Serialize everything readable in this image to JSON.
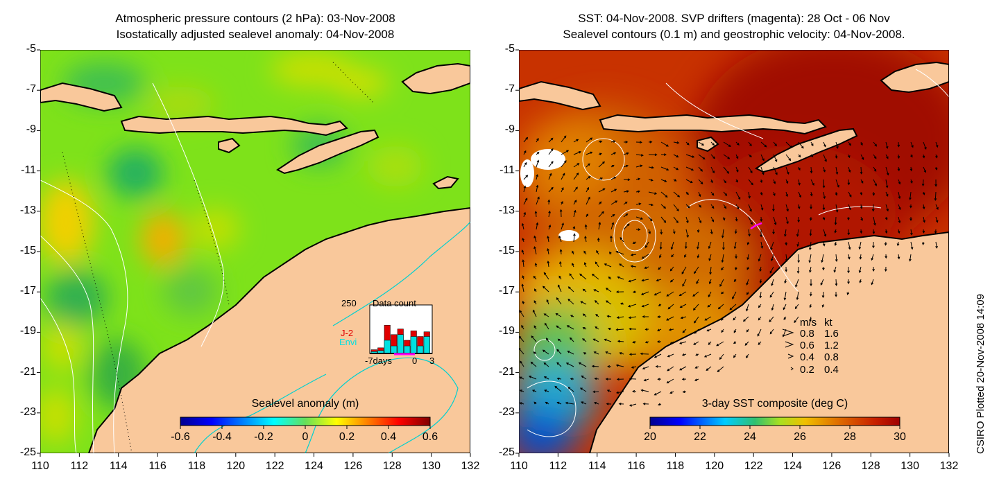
{
  "left_panel": {
    "title_line1": "Atmospheric pressure contours (2 hPa): 03-Nov-2008",
    "title_line2": "Isostatically adjusted sealevel anomaly: 04-Nov-2008",
    "colorbar": {
      "label": "Sealevel anomaly (m)",
      "ticks": [
        "-0.6",
        "-0.4",
        "-0.2",
        "0",
        "0.2",
        "0.4",
        "0.6"
      ],
      "range": [
        -0.6,
        0.6
      ],
      "colormap": "jet"
    },
    "inset": {
      "title": "Data count",
      "ymax_label": "250",
      "series": [
        {
          "name": "J-2",
          "color": "#e00000"
        },
        {
          "name": "Envi",
          "color": "#00e0e0"
        }
      ],
      "x_labels": [
        "-7days",
        "0",
        "3"
      ],
      "bars": [
        {
          "day": -6,
          "j2": 20,
          "envi": 10
        },
        {
          "day": -5,
          "j2": 30,
          "envi": 15
        },
        {
          "day": -4,
          "j2": 150,
          "envi": 70
        },
        {
          "day": -3,
          "j2": 100,
          "envi": 40
        },
        {
          "day": -2,
          "j2": 130,
          "envi": 100
        },
        {
          "day": -1,
          "j2": 70,
          "envi": 40
        },
        {
          "day": 0,
          "j2": 120,
          "envi": 90
        },
        {
          "day": 1,
          "j2": 90,
          "envi": 40
        },
        {
          "day": 2,
          "j2": 115,
          "envi": 90
        }
      ],
      "ymax": 250
    }
  },
  "right_panel": {
    "title_line1": "SST: 04-Nov-2008. SVP drifters (magenta): 28 Oct - 06 Nov",
    "title_line2": "Sealevel contours (0.1 m) and geostrophic velocity: 04-Nov-2008.",
    "colorbar": {
      "label": "3-day SST composite (deg C)",
      "ticks": [
        "20",
        "22",
        "24",
        "26",
        "28",
        "30"
      ],
      "range": [
        20,
        30
      ],
      "colormap": "jet"
    },
    "legend": {
      "header_ms": "m/s",
      "header_kt": "kt",
      "rows": [
        {
          "ms": "0.8",
          "kt": "1.6"
        },
        {
          "ms": "0.6",
          "kt": "1.2"
        },
        {
          "ms": "0.4",
          "kt": "0.8"
        },
        {
          "ms": "0.2",
          "kt": "0.4"
        }
      ]
    }
  },
  "axes": {
    "lon_ticks": [
      "110",
      "112",
      "114",
      "116",
      "118",
      "120",
      "122",
      "124",
      "126",
      "128",
      "130",
      "132"
    ],
    "lat_ticks": [
      "-5",
      "-7",
      "-9",
      "-11",
      "-13",
      "-15",
      "-17",
      "-19",
      "-21",
      "-23",
      "-25"
    ],
    "lon_range": [
      110,
      132
    ],
    "lat_range": [
      -25,
      -5
    ]
  },
  "credit": "CSIRO Plotted 20-Nov-2008 14:09",
  "colors": {
    "land": "#f9c89b",
    "coast": "#000000",
    "drifter": "#ff00ff",
    "contour_white": "#ffffff",
    "isobath": "#00d0d0"
  }
}
